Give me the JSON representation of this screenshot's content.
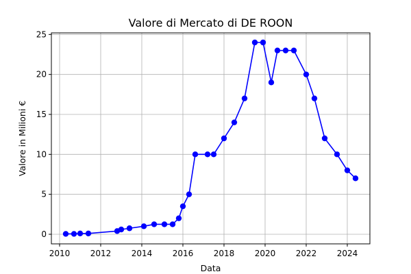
{
  "chart_data": {
    "type": "line",
    "title": "Valore di Mercato di DE ROON",
    "xlabel": "Data",
    "ylabel": "Valore in Milioni €",
    "xlim": [
      2009.6,
      2025.1
    ],
    "ylim": [
      -1.2,
      25.2
    ],
    "grid": true,
    "x_ticks": [
      2010,
      2012,
      2014,
      2016,
      2018,
      2020,
      2022,
      2024
    ],
    "y_ticks": [
      0,
      5,
      10,
      15,
      20,
      25
    ],
    "series": [
      {
        "color": "#0000ff",
        "marker": "circle",
        "x": [
          2010.3,
          2010.7,
          2011.0,
          2011.4,
          2012.8,
          2013.0,
          2013.4,
          2014.1,
          2014.6,
          2015.1,
          2015.5,
          2015.8,
          2016.0,
          2016.3,
          2016.6,
          2017.2,
          2017.5,
          2018.0,
          2018.5,
          2019.0,
          2019.5,
          2019.9,
          2020.3,
          2020.6,
          2021.0,
          2021.4,
          2022.0,
          2022.4,
          2022.9,
          2023.5,
          2024.0,
          2024.4
        ],
        "values": [
          0.05,
          0.05,
          0.1,
          0.1,
          0.4,
          0.6,
          0.75,
          1.0,
          1.25,
          1.25,
          1.25,
          2.0,
          3.5,
          5.0,
          10.0,
          10.0,
          10.0,
          12.0,
          14.0,
          17.0,
          24.0,
          24.0,
          19.0,
          23.0,
          23.0,
          23.0,
          20.0,
          17.0,
          12.0,
          10.0,
          8.0,
          7.0
        ]
      }
    ]
  }
}
